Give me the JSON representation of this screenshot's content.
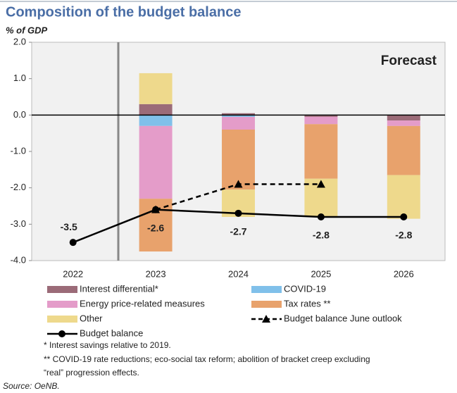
{
  "chart_data": {
    "type": "bar",
    "title": "Composition of the budget balance",
    "subtitle": "% of GDP",
    "annotation": "Forecast",
    "categories": [
      "2022",
      "2023",
      "2024",
      "2025",
      "2026"
    ],
    "series": [
      {
        "name": "Interest differential*",
        "type": "bar",
        "color": "#9b6b78",
        "values": [
          null,
          0.3,
          0.05,
          -0.05,
          -0.15
        ]
      },
      {
        "name": "COVID-19",
        "type": "bar",
        "color": "#80c0ea",
        "values": [
          null,
          -0.3,
          -0.05,
          0,
          0
        ]
      },
      {
        "name": "Energy price-related measures",
        "type": "bar",
        "color": "#e49cc9",
        "values": [
          null,
          -2.0,
          -0.35,
          -0.2,
          -0.15
        ]
      },
      {
        "name": "Tax rates **",
        "type": "bar",
        "color": "#e8a26c",
        "values": [
          null,
          -1.45,
          -1.65,
          -1.5,
          -1.35
        ]
      },
      {
        "name": "Other",
        "type": "bar",
        "color": "#eed98c",
        "values": [
          null,
          0.85,
          -0.75,
          -1.05,
          -1.2
        ]
      },
      {
        "name": "Budget balance June outlook",
        "type": "line",
        "marker": "triangle",
        "dashed": true,
        "color": "#000000",
        "values": [
          null,
          -2.6,
          -1.9,
          -1.9,
          null
        ]
      },
      {
        "name": "Budget balance",
        "type": "line",
        "marker": "circle",
        "dashed": false,
        "color": "#000000",
        "values": [
          -3.5,
          -2.6,
          -2.7,
          -2.8,
          -2.8
        ],
        "value_labels": [
          "-3.5",
          "-2.6",
          "-2.7",
          "-2.8",
          "-2.8"
        ]
      }
    ],
    "ylim": [
      -4,
      2
    ],
    "yticks": [
      {
        "value": -4,
        "label": "-4.0"
      },
      {
        "value": -3,
        "label": "-3.0"
      },
      {
        "value": -2,
        "label": "-2.0"
      },
      {
        "value": -1,
        "label": "-1.0"
      },
      {
        "value": 0,
        "label": "0.0"
      },
      {
        "value": 1,
        "label": "1.0"
      },
      {
        "value": 2,
        "label": "2.0"
      }
    ],
    "grid": false,
    "footnotes": [
      "* Interest savings relative to 2019.",
      "** COVID-19 rate reductions; eco-social tax reform; abolition of bracket creep excluding",
      "“real” progression effects."
    ],
    "source": "Source: OeNB."
  }
}
